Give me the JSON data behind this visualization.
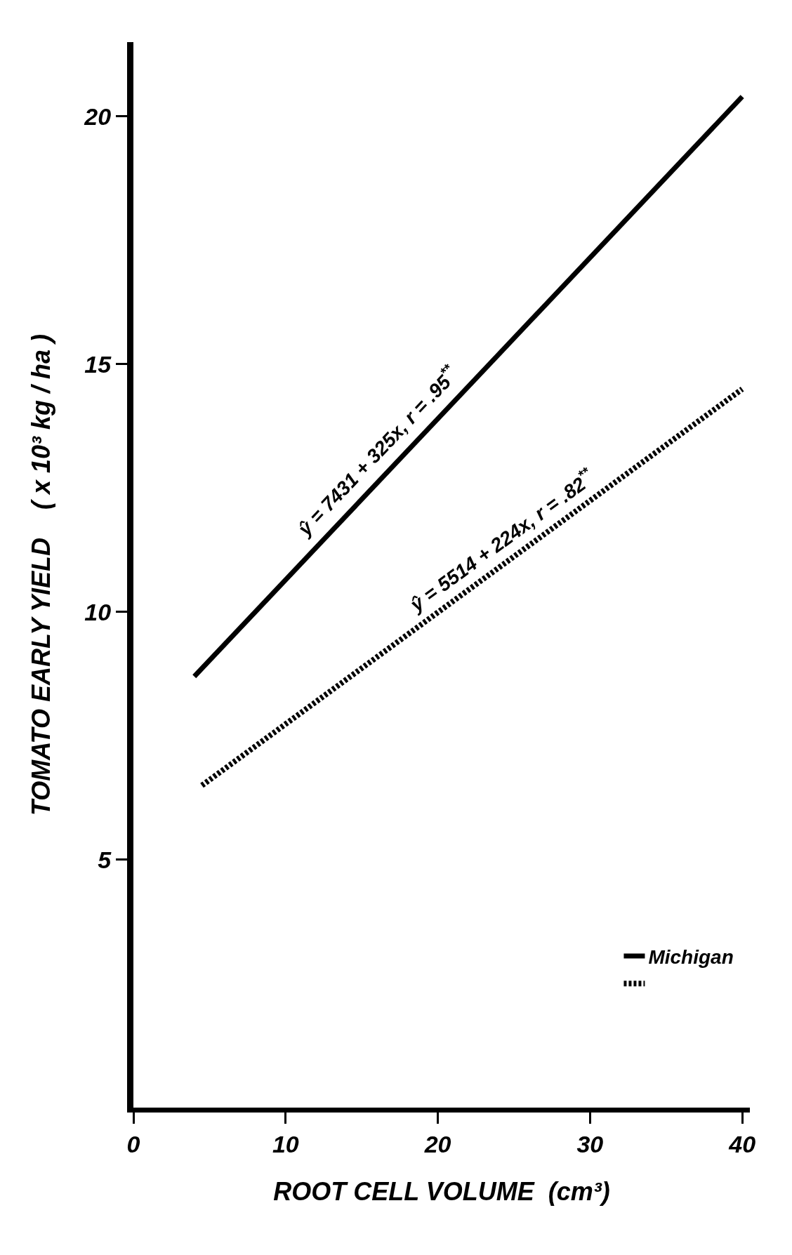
{
  "chart_data": {
    "type": "line",
    "xlabel": "ROOT CELL VOLUME  (cm³)",
    "ylabel": "TOMATO EARLY YIELD    ( x 10³ kg / ha )",
    "series": [
      {
        "name": "Michigan",
        "color": "#000000",
        "x": [
          4,
          40
        ],
        "values": [
          8.7,
          20.4
        ],
        "line_style": "solid"
      },
      {
        "color": "#000000",
        "x": [
          4.5,
          40
        ],
        "values": [
          6.5,
          14.5
        ],
        "line_style": "dotted"
      }
    ],
    "annotations": [
      {
        "text": "ŷ = 7431 + 325x, r = .95$^{**}$",
        "x": 17,
        "y": 12.96
      },
      {
        "text": "ŷ = 5514 + 224x, r = .82$^{**}$",
        "x": 25,
        "y": 11.11
      }
    ],
    "xlim": [
      0,
      40.5
    ],
    "ylim": [
      0,
      21.5
    ],
    "xticks": [
      0,
      10,
      20,
      30,
      40
    ],
    "yticks": [
      5,
      10,
      15,
      20
    ],
    "grid": false,
    "legend": "bottom right",
    "marker": "none"
  }
}
